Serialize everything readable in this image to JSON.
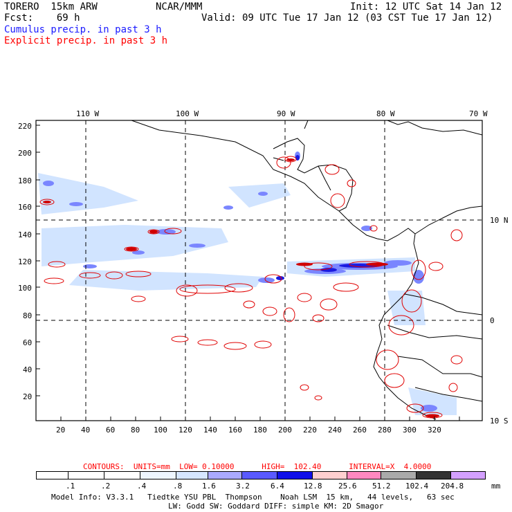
{
  "header": {
    "model": "TORERO  15km ARW",
    "org": "NCAR/MMM",
    "init": "Init: 12 UTC Sat 14 Jan 12",
    "fcst": "Fcst:    69 h",
    "valid": "Valid: 09 UTC Tue 17 Jan 12 (03 CST Tue 17 Jan 12)",
    "cumulus": "Cumulus precip. in past 3 h",
    "explicit": "Explicit precip. in past 3 h"
  },
  "axes": {
    "top_labels": [
      "110 W",
      "100 W",
      "90 W",
      "80 W",
      "70 W"
    ],
    "right_labels": [
      "10 N",
      "0",
      "10 S"
    ],
    "y_ticks": [
      "220",
      "200",
      "180",
      "160",
      "140",
      "120",
      "100",
      "80",
      "60",
      "40",
      "20"
    ],
    "x_ticks": [
      "20",
      "40",
      "60",
      "80",
      "100",
      "120",
      "140",
      "160",
      "180",
      "200",
      "220",
      "240",
      "260",
      "280",
      "300",
      "320"
    ]
  },
  "contours": {
    "label": "CONTOURS:  UNITS=mm  LOW= 0.10000      HIGH=  102.40      INTERVAL=X  4.0000"
  },
  "legend": {
    "unit": "mm",
    "labels": [
      ".1",
      ".2",
      ".4",
      ".8",
      "1.6",
      "3.2",
      "6.4",
      "12.8",
      "25.6",
      "51.2",
      "102.4",
      "204.8"
    ],
    "colors": [
      "#ffffff",
      "#ffffff",
      "#ffffff",
      "#ffffff",
      "#ddeeff",
      "#aaaaff",
      "#6666ff",
      "#3333ee",
      "#0000dd",
      "#ffcccc",
      "#ff88cc",
      "#aaaaaa",
      "#333333",
      "#cc99ff"
    ]
  },
  "footer": {
    "line1": "Model Info: V3.3.1   Tiedtke YSU PBL  Thompson    Noah LSM  15 km,   44 levels,   63 sec",
    "line2": "LW: Godd SW: Goddard DIFF: simple KM: 2D Smagor"
  }
}
